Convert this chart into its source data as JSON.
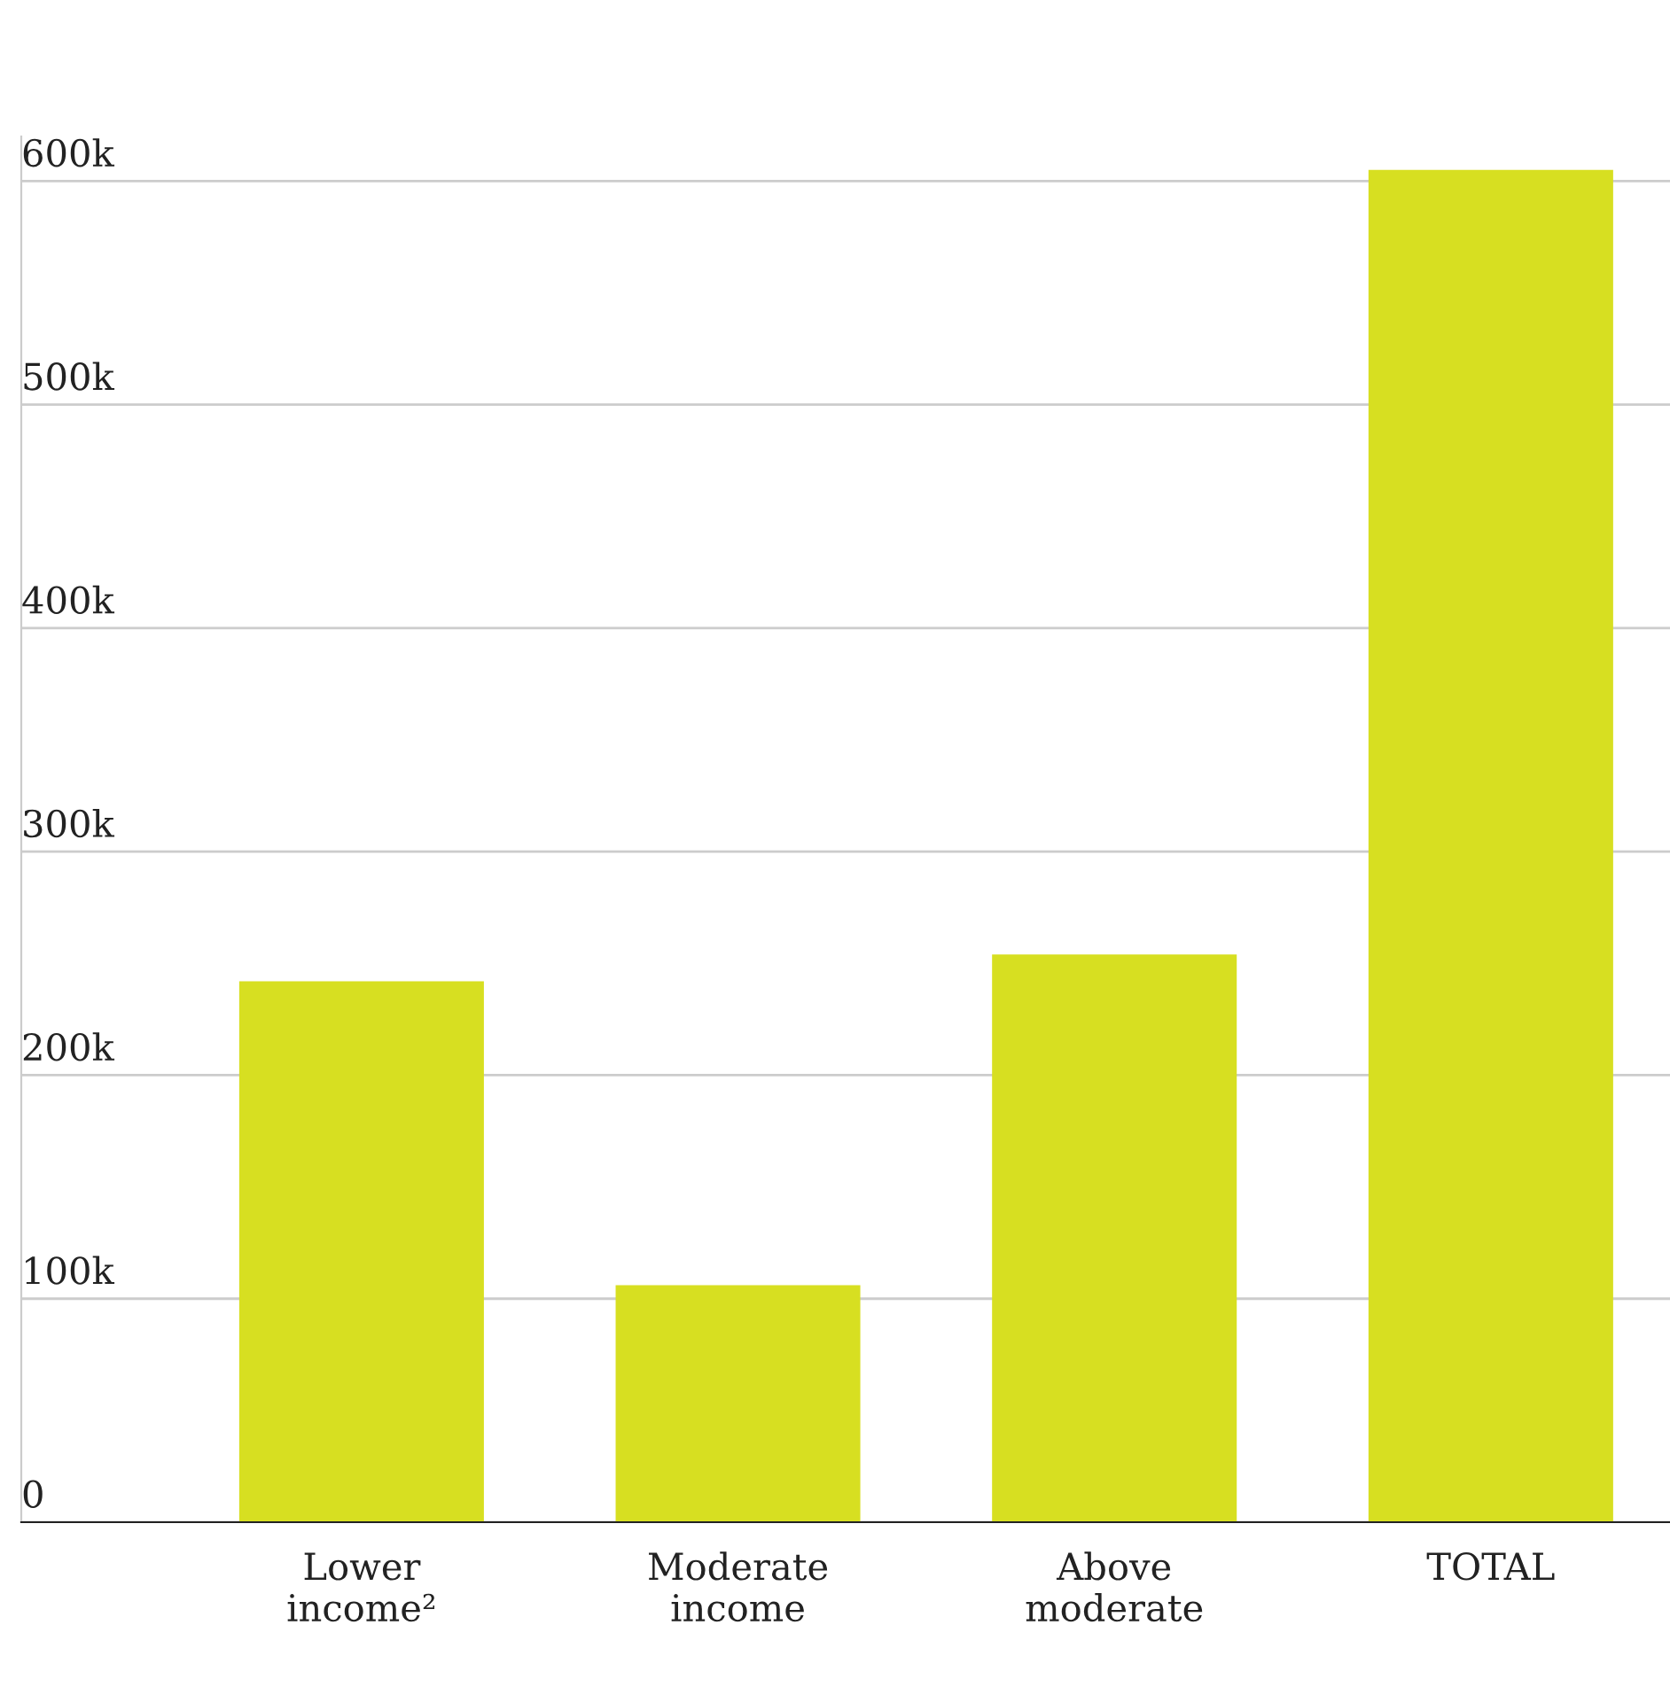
{
  "chart_data": {
    "type": "bar",
    "categories": [
      "Lower\nincome²",
      "Moderate\nincome",
      "Above\nmoderate",
      "TOTAL"
    ],
    "values": [
      242000,
      106000,
      254000,
      605000
    ],
    "color": "#d7df21",
    "ylim": [
      0,
      620000
    ],
    "yticks": [
      {
        "value": 0,
        "label": "0"
      },
      {
        "value": 100000,
        "label": "100k"
      },
      {
        "value": 200000,
        "label": "200k"
      },
      {
        "value": 300000,
        "label": "300k"
      },
      {
        "value": 400000,
        "label": "400k"
      },
      {
        "value": 500000,
        "label": "500k"
      },
      {
        "value": 600000,
        "label": "600k"
      }
    ],
    "grid": "y"
  }
}
